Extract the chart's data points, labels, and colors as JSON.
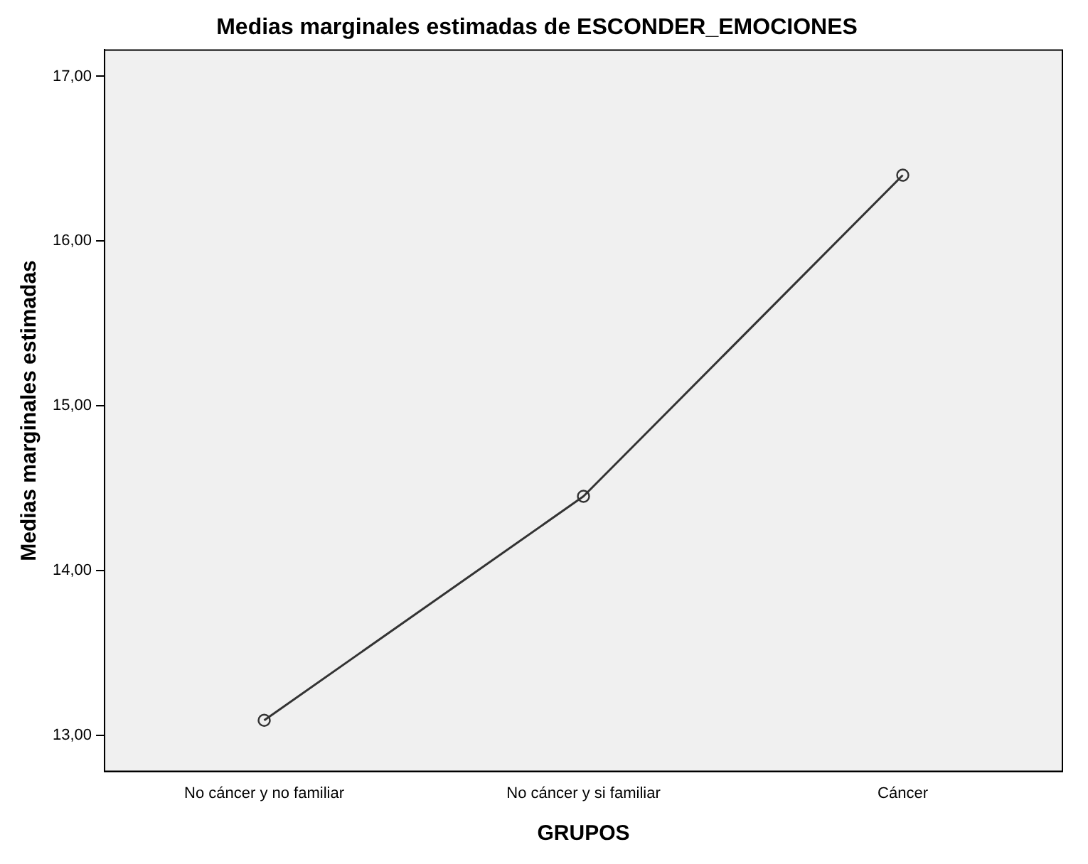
{
  "chart_data": {
    "type": "line",
    "title": "Medias marginales estimadas de ESCONDER_EMOCIONES",
    "xlabel": "GRUPOS",
    "ylabel": "Medias marginales estimadas",
    "categories": [
      "No cáncer y no familiar",
      "No cáncer y si familiar",
      "Cáncer"
    ],
    "series": [
      {
        "color": "#333333",
        "values": [
          13.09,
          14.45,
          16.4
        ]
      }
    ],
    "ylim": [
      12.78,
      17.16
    ],
    "yticks": [
      {
        "value": 13,
        "label": "13,00"
      },
      {
        "value": 14,
        "label": "14,00"
      },
      {
        "value": 15,
        "label": "15,00"
      },
      {
        "value": 16,
        "label": "16,00"
      },
      {
        "value": 17,
        "label": "17,00"
      }
    ],
    "grid": false,
    "legend": false,
    "marker": "circle",
    "line_style": "solid"
  }
}
